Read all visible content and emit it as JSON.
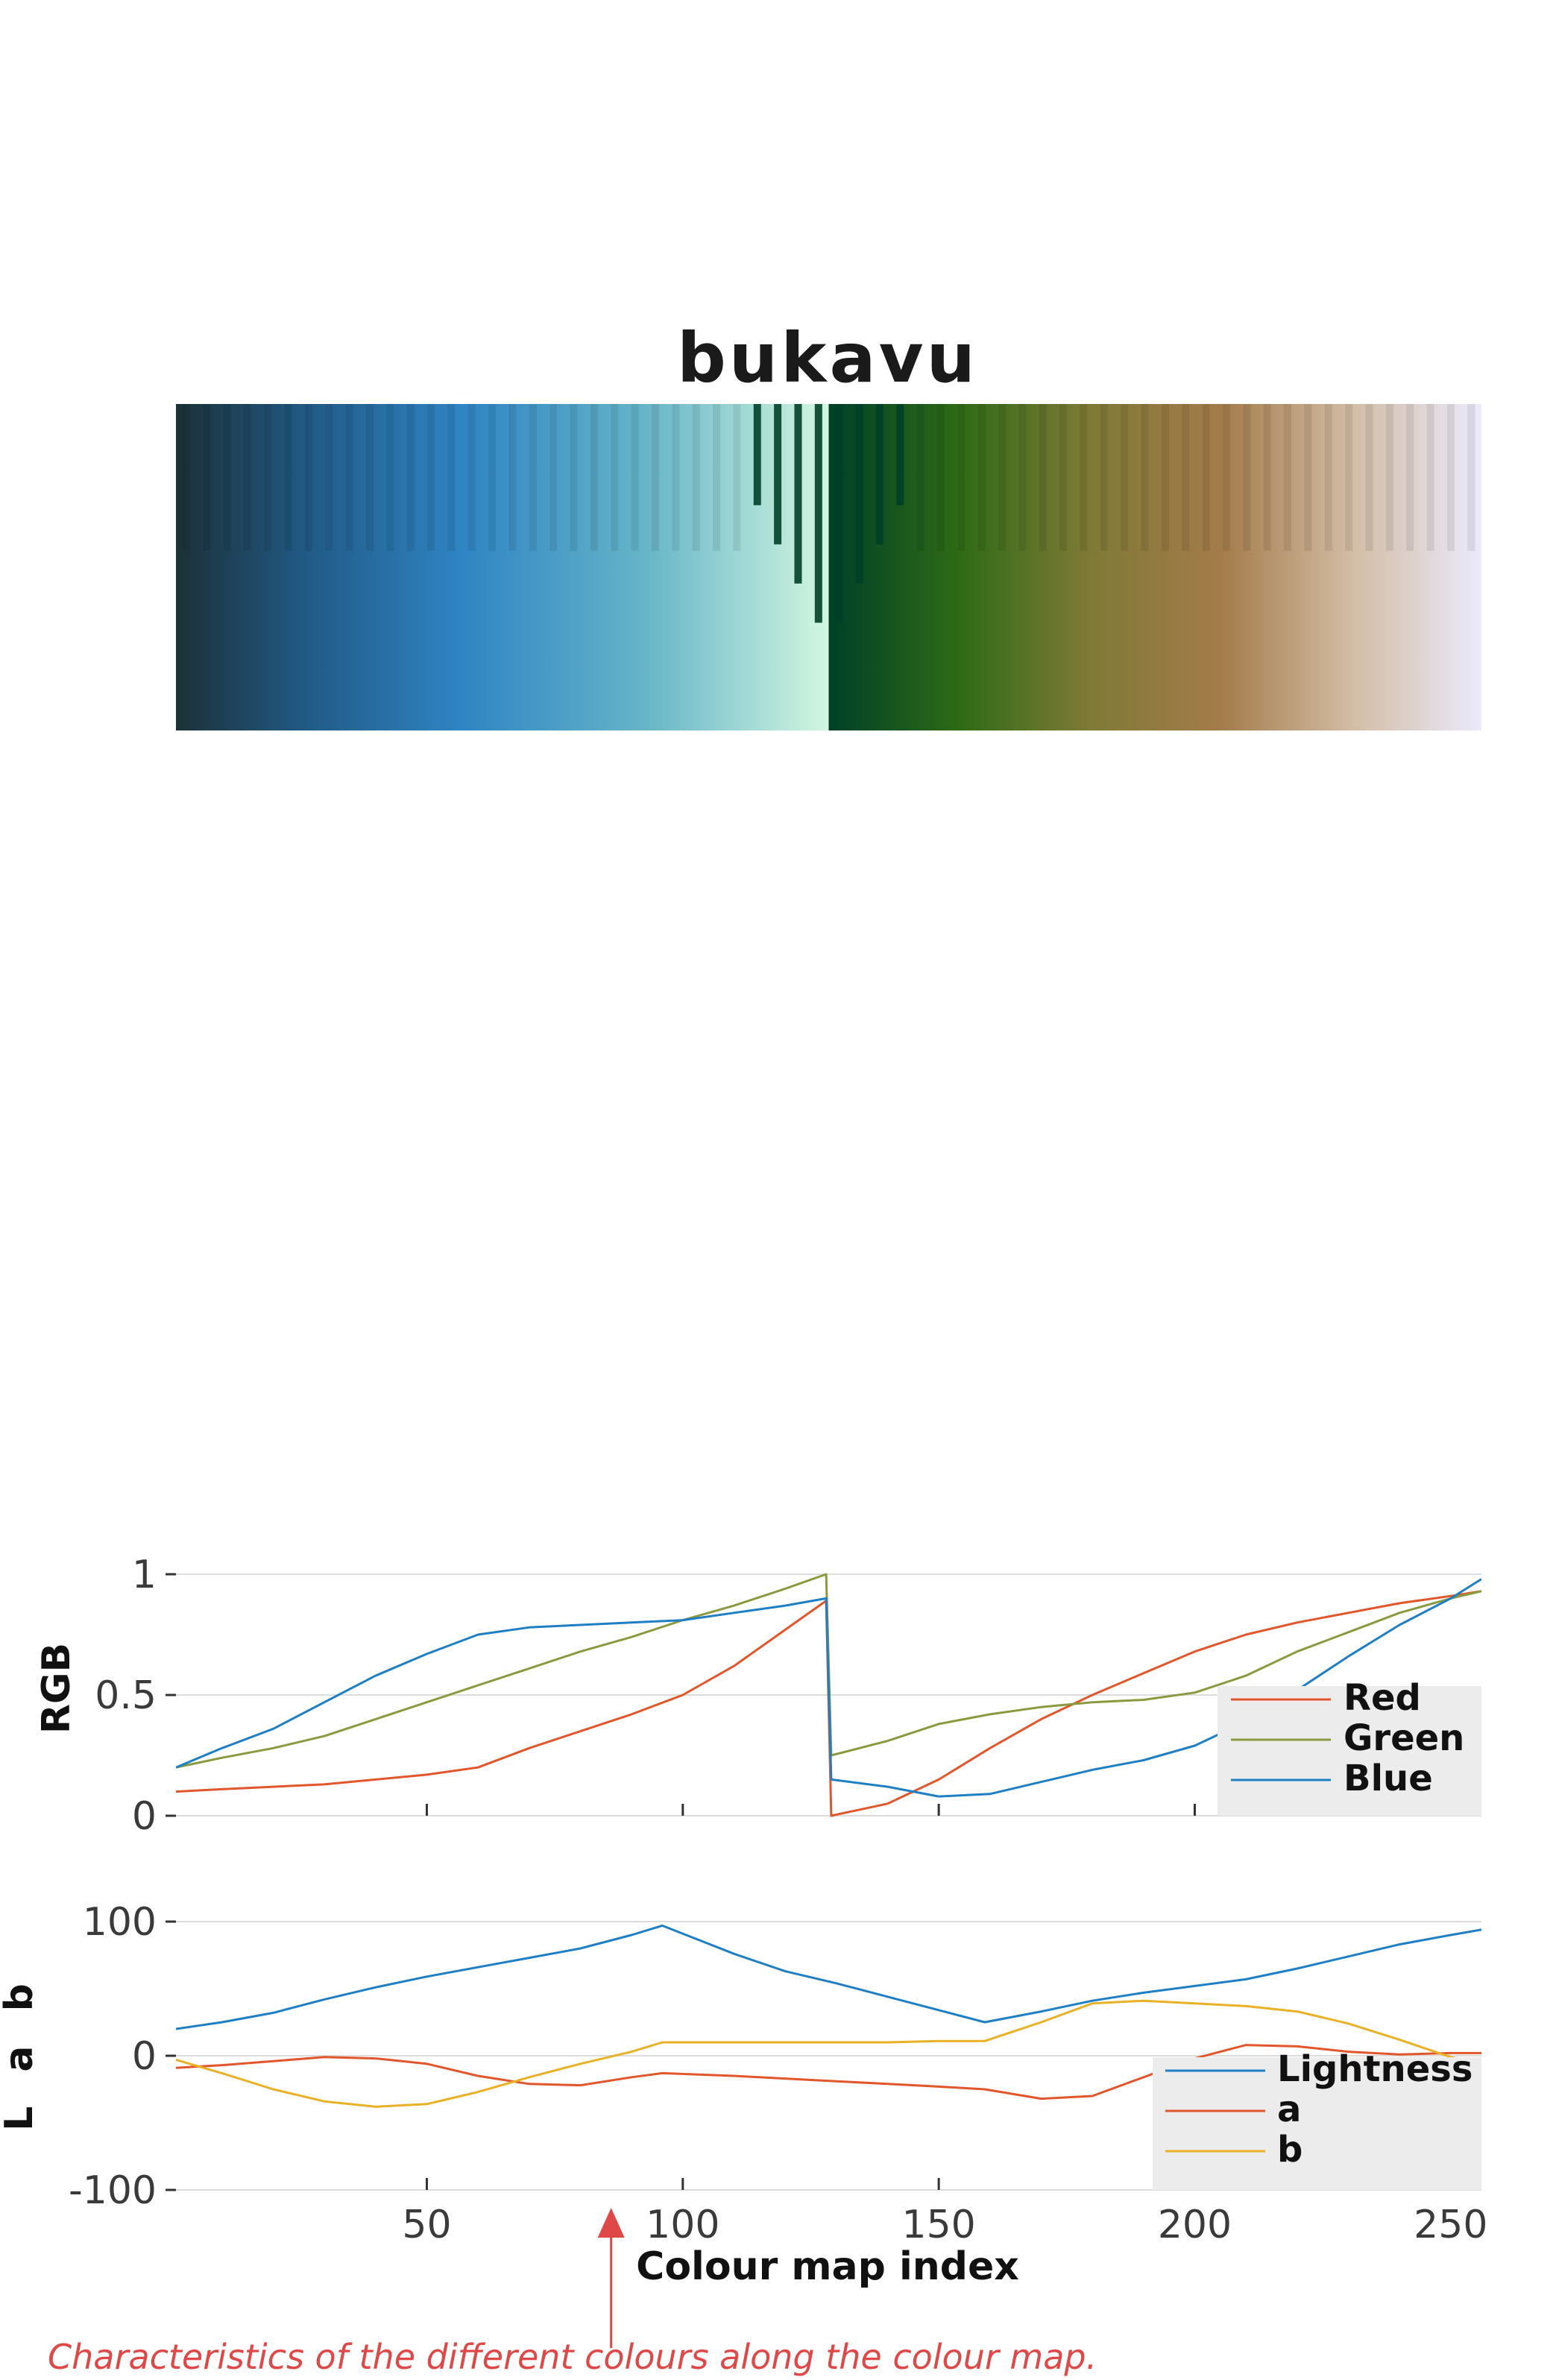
{
  "title": "bukavu",
  "colormap": {
    "name": "bukavu",
    "stops": [
      {
        "pos": 0.0,
        "color": "#1c3137"
      },
      {
        "pos": 0.1,
        "color": "#215a86"
      },
      {
        "pos": 0.22,
        "color": "#2f85c4"
      },
      {
        "pos": 0.36,
        "color": "#66b5c8"
      },
      {
        "pos": 0.5,
        "color": "#d2f7e0"
      },
      {
        "pos": 0.5,
        "color": "#004028"
      },
      {
        "pos": 0.6,
        "color": "#2e6b15"
      },
      {
        "pos": 0.7,
        "color": "#7f7a36"
      },
      {
        "pos": 0.8,
        "color": "#a47b4a"
      },
      {
        "pos": 0.9,
        "color": "#d2bca4"
      },
      {
        "pos": 1.0,
        "color": "#ebeafc"
      }
    ]
  },
  "chart_data": [
    {
      "type": "line",
      "ylabel": "RGB",
      "xlim": [
        1,
        256
      ],
      "ylim": [
        0,
        1
      ],
      "yticks": [
        0,
        0.5,
        1
      ],
      "yticklabels": [
        "0",
        "0.5",
        "1"
      ],
      "grid": true,
      "legend": "bottom-right",
      "x": [
        1,
        10,
        20,
        30,
        40,
        50,
        60,
        70,
        80,
        90,
        100,
        110,
        120,
        128,
        129,
        140,
        150,
        160,
        170,
        180,
        190,
        200,
        210,
        220,
        230,
        240,
        250,
        256
      ],
      "series": [
        {
          "name": "Red",
          "color": "#e2562b",
          "values": [
            0.1,
            0.11,
            0.12,
            0.13,
            0.15,
            0.17,
            0.2,
            0.28,
            0.35,
            0.42,
            0.5,
            0.62,
            0.77,
            0.89,
            0.0,
            0.05,
            0.15,
            0.28,
            0.4,
            0.5,
            0.59,
            0.68,
            0.75,
            0.8,
            0.84,
            0.88,
            0.91,
            0.93
          ]
        },
        {
          "name": "Green",
          "color": "#8a9a3e",
          "values": [
            0.2,
            0.24,
            0.28,
            0.33,
            0.4,
            0.47,
            0.54,
            0.61,
            0.68,
            0.74,
            0.81,
            0.87,
            0.94,
            1.0,
            0.25,
            0.31,
            0.38,
            0.42,
            0.45,
            0.47,
            0.48,
            0.51,
            0.58,
            0.68,
            0.76,
            0.84,
            0.9,
            0.93
          ]
        },
        {
          "name": "Blue",
          "color": "#1f7fc5",
          "values": [
            0.2,
            0.28,
            0.36,
            0.47,
            0.58,
            0.67,
            0.75,
            0.78,
            0.79,
            0.8,
            0.81,
            0.84,
            0.87,
            0.9,
            0.15,
            0.12,
            0.08,
            0.09,
            0.14,
            0.19,
            0.23,
            0.29,
            0.39,
            0.52,
            0.66,
            0.79,
            0.9,
            0.98
          ]
        }
      ]
    },
    {
      "type": "line",
      "ylabel": "L a b",
      "xlabel": "Colour map index",
      "xlim": [
        1,
        256
      ],
      "ylim": [
        -100,
        100
      ],
      "xticks": [
        50,
        100,
        150,
        200,
        250
      ],
      "xticklabels": [
        "50",
        "100",
        "150",
        "200",
        "250"
      ],
      "yticks": [
        -100,
        0,
        100
      ],
      "yticklabels": [
        "-100",
        "0",
        "100"
      ],
      "grid": true,
      "legend": "bottom-right",
      "x": [
        1,
        10,
        20,
        30,
        40,
        50,
        60,
        70,
        80,
        90,
        96,
        110,
        120,
        130,
        140,
        150,
        159,
        170,
        180,
        190,
        200,
        210,
        220,
        230,
        240,
        250,
        256
      ],
      "series": [
        {
          "name": "Lightness",
          "color": "#1f7fc5",
          "values": [
            20,
            25,
            32,
            42,
            51,
            59,
            66,
            73,
            80,
            90,
            97,
            76,
            63,
            54,
            44,
            34,
            25,
            33,
            41,
            47,
            52,
            57,
            65,
            74,
            83,
            90,
            94
          ]
        },
        {
          "name": "a",
          "color": "#e2562b",
          "values": [
            -9,
            -7,
            -4,
            -1,
            -2,
            -6,
            -15,
            -21,
            -22,
            -16,
            -13,
            -15,
            -17,
            -19,
            -21,
            -23,
            -25,
            -32,
            -30,
            -16,
            -2,
            8,
            7,
            3,
            1,
            2,
            2
          ]
        },
        {
          "name": "b",
          "color": "#e8b126",
          "values": [
            -3,
            -13,
            -25,
            -34,
            -38,
            -36,
            -27,
            -16,
            -6,
            3,
            10,
            10,
            10,
            10,
            10,
            11,
            11,
            25,
            39,
            41,
            39,
            37,
            33,
            24,
            12,
            -1,
            -6
          ]
        }
      ]
    }
  ],
  "annotation": {
    "caption": "Characteristics of the different colours along the colour map.",
    "arrow_x": 86,
    "color": "#e04848"
  }
}
